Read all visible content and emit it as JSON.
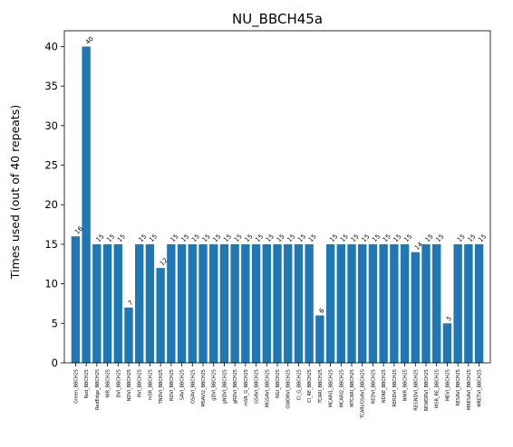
{
  "chart_data": {
    "type": "bar",
    "title": "NU_BBCH45a",
    "xlabel": "",
    "ylabel": "Times used (out of 40 repeats)",
    "ylim": [
      0,
      42
    ],
    "yticks": [
      0,
      5,
      10,
      15,
      20,
      25,
      30,
      35,
      40
    ],
    "bar_color": "#1f77b4",
    "grid": false,
    "categories": [
      "Green_BBCH25",
      "Red_BBCH25",
      "RedEdge_BBCH25",
      "NIR_BBCH25",
      "DVI_BBCH25",
      "NDVI_BBCH25",
      "RVI_BBCH25",
      "mSR_BBCH25",
      "TNDVI_BBCH25",
      "RDVI_BBCH25",
      "SAVI_BBCH25",
      "OSAVI_BBCH25",
      "MSAVI2_BBCH25",
      "gDVI_BBCH25",
      "gNDVI_BBCH25",
      "gRDVI_BBCH25",
      "mSR_G_BBCH25",
      "GSAVI_BBCH25",
      "MGSAVI_BBCH25",
      "NGI_BBCH25",
      "GWDRVI_BBCH25",
      "CI_G_BBCH25",
      "CI_RE_BBCH25",
      "TCARI_BBCH25",
      "MCARI1_BBCH25",
      "MCARI2_BBCH25",
      "MTCARI_BBCH25",
      "TCARI/OSAVI_BBCH25",
      "REDVI_BBCH25",
      "NDRE_BBCH25",
      "RERDVI_BBCH25",
      "NNIR_BBCH25",
      "REGNDVI_BBCH25",
      "REWDRVI_BBCH25",
      "MSR_RE_BBCH25",
      "MEVI_BBCH25",
      "RESAVI_BBCH25",
      "MRESAVI_BBCH25",
      "MRETVI_BBCH25"
    ],
    "values": [
      16,
      40,
      15,
      15,
      15,
      7,
      15,
      15,
      12,
      15,
      15,
      15,
      15,
      15,
      15,
      15,
      15,
      15,
      15,
      15,
      15,
      15,
      15,
      6,
      15,
      15,
      15,
      15,
      15,
      15,
      15,
      15,
      14,
      15,
      15,
      5,
      15,
      15,
      15
    ]
  }
}
